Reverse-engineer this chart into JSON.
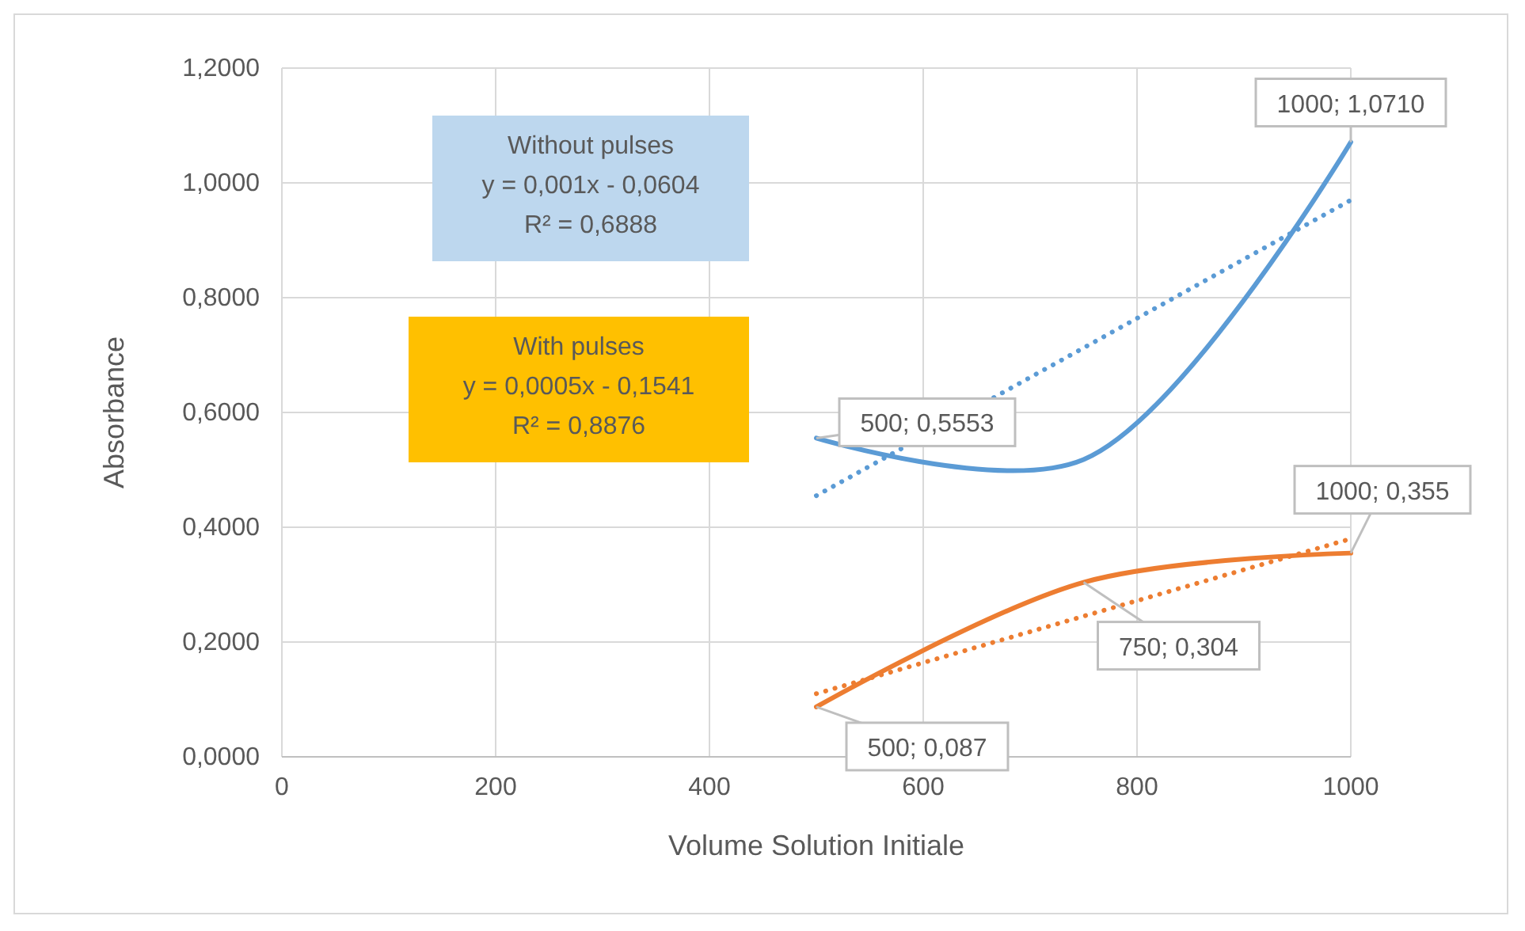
{
  "chart_data": {
    "type": "line",
    "xlabel": "Volume Solution Initiale",
    "ylabel": "Absorbance",
    "xlim": [
      0,
      1000
    ],
    "xticks": [
      0,
      200,
      400,
      600,
      800,
      1000
    ],
    "ylim": [
      0,
      1.2
    ],
    "yticks": [
      {
        "value": 0,
        "label": "0,0000"
      },
      {
        "value": 0.2,
        "label": "0,2000"
      },
      {
        "value": 0.4,
        "label": "0,4000"
      },
      {
        "value": 0.6,
        "label": "0,6000"
      },
      {
        "value": 0.8,
        "label": "0,8000"
      },
      {
        "value": 1.0,
        "label": "1,0000"
      },
      {
        "value": 1.2,
        "label": "1,2000"
      }
    ],
    "grid": true,
    "marker": "none",
    "series": [
      {
        "color": "#5b9bd5",
        "x": [
          500,
          750,
          1000
        ],
        "values": [
          0.5553,
          0.518,
          1.071
        ],
        "line_style": "solid"
      },
      {
        "color": "#ed7d31",
        "x": [
          500,
          750,
          1000
        ],
        "values": [
          0.087,
          0.304,
          0.355
        ],
        "line_style": "solid"
      },
      {
        "color": "#5b9bd5",
        "x": [
          500,
          1000
        ],
        "values": [
          0.455,
          0.97
        ],
        "line_style": "dotted"
      },
      {
        "color": "#ed7d31",
        "x": [
          500,
          1000
        ],
        "values": [
          0.11,
          0.38
        ],
        "line_style": "dotted"
      }
    ],
    "annotations": [
      "Without pulses\ny = 0,001x - 0,0604\nR² = 0,6888",
      "With pulses\ny = 0,0005x - 0,1541\nR² = 0,8876",
      {
        "text": "500; 0,5553",
        "x": 500,
        "y": 0.5553
      },
      {
        "text": "1000; 1,0710",
        "x": 1000,
        "y": 1.071
      },
      {
        "text": "500; 0,087",
        "x": 500,
        "y": 0.087
      },
      {
        "text": "750; 0,304",
        "x": 750,
        "y": 0.304
      },
      {
        "text": "1000; 0,355",
        "x": 1000,
        "y": 0.355
      }
    ]
  }
}
